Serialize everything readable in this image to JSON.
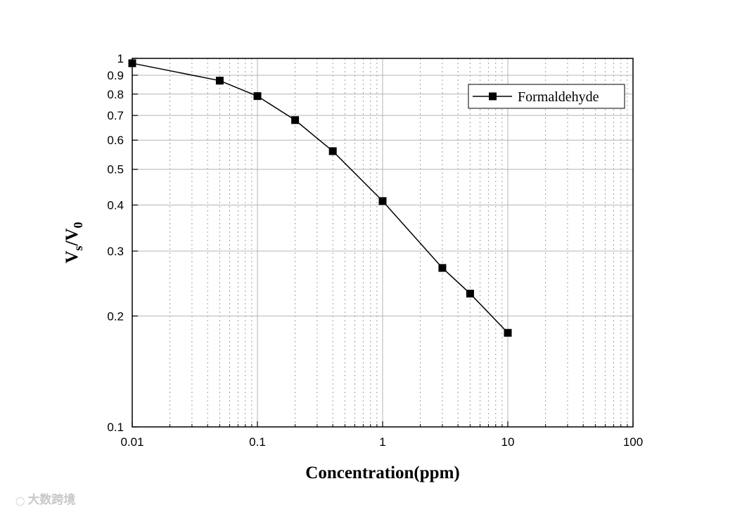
{
  "chart_data": {
    "type": "line",
    "x_scale": "log",
    "y_scale": "log",
    "xlim": [
      0.01,
      100
    ],
    "ylim": [
      0.1,
      1
    ],
    "xlabel": "Concentration(ppm)",
    "ylabel": {
      "main": "V",
      "sub1": "s",
      "sep": "/V",
      "sub2": "0"
    },
    "x_ticks": [
      {
        "value": 0.01,
        "label": "0.01"
      },
      {
        "value": 0.1,
        "label": "0.1"
      },
      {
        "value": 1,
        "label": "1"
      },
      {
        "value": 10,
        "label": "10"
      },
      {
        "value": 100,
        "label": "100"
      }
    ],
    "y_ticks": [
      {
        "value": 0.1,
        "label": "0.1"
      },
      {
        "value": 0.2,
        "label": "0.2"
      },
      {
        "value": 0.3,
        "label": "0.3"
      },
      {
        "value": 0.4,
        "label": "0.4"
      },
      {
        "value": 0.5,
        "label": "0.5"
      },
      {
        "value": 0.6,
        "label": "0.6"
      },
      {
        "value": 0.7,
        "label": "0.7"
      },
      {
        "value": 0.8,
        "label": "0.8"
      },
      {
        "value": 0.9,
        "label": "0.9"
      },
      {
        "value": 1,
        "label": "1"
      }
    ],
    "grid": true,
    "legend_position": "top-right",
    "series": [
      {
        "name": "Formaldehyde",
        "marker": "square",
        "color": "#000000",
        "x": [
          0.01,
          0.05,
          0.1,
          0.2,
          0.4,
          1,
          3,
          5,
          10
        ],
        "y": [
          0.97,
          0.87,
          0.79,
          0.68,
          0.56,
          0.41,
          0.27,
          0.23,
          0.18
        ]
      }
    ]
  },
  "watermark": {
    "text": "大数跨境",
    "icon": "logo-icon"
  }
}
